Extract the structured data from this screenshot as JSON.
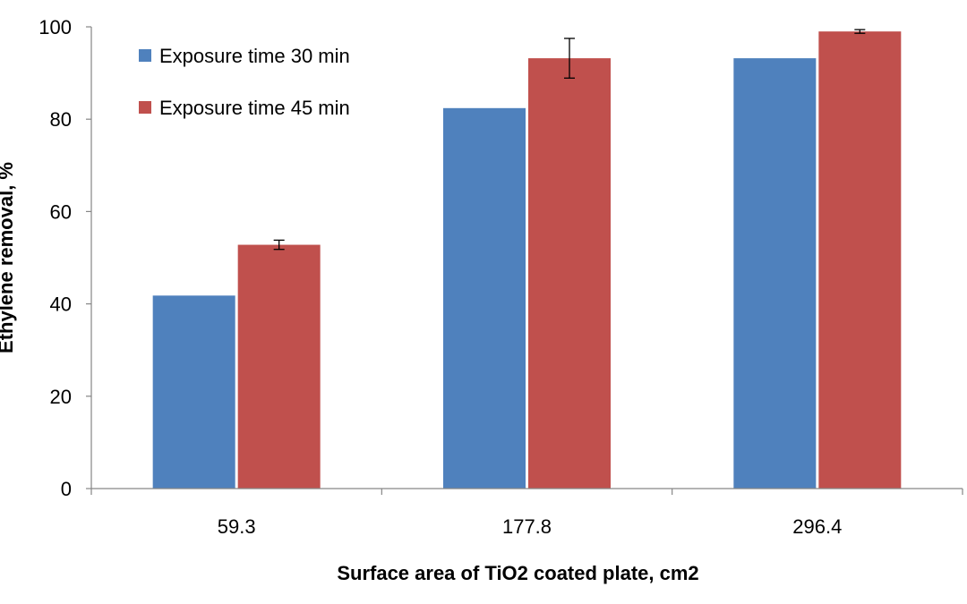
{
  "chart_data": {
    "type": "bar",
    "title": "",
    "xlabel": "Surface area of TiO2 coated plate, cm2",
    "ylabel": "Ethylene removal, %",
    "categories": [
      "59.3",
      "177.8",
      "296.4"
    ],
    "ylim": [
      0,
      100
    ],
    "yticks": [
      "0",
      "20",
      "40",
      "60",
      "80",
      "100"
    ],
    "grid": false,
    "legend_position": "top-left",
    "series": [
      {
        "name": "Exposure time 30 min",
        "color": "#4F81BD",
        "values": [
          41.8,
          82.4,
          93.2
        ],
        "errors": [
          0,
          0,
          0
        ]
      },
      {
        "name": "Exposure time 45 min",
        "color": "#C0504D",
        "values": [
          52.8,
          93.2,
          99.0
        ],
        "errors": [
          1.0,
          4.3,
          0.4
        ]
      }
    ]
  }
}
